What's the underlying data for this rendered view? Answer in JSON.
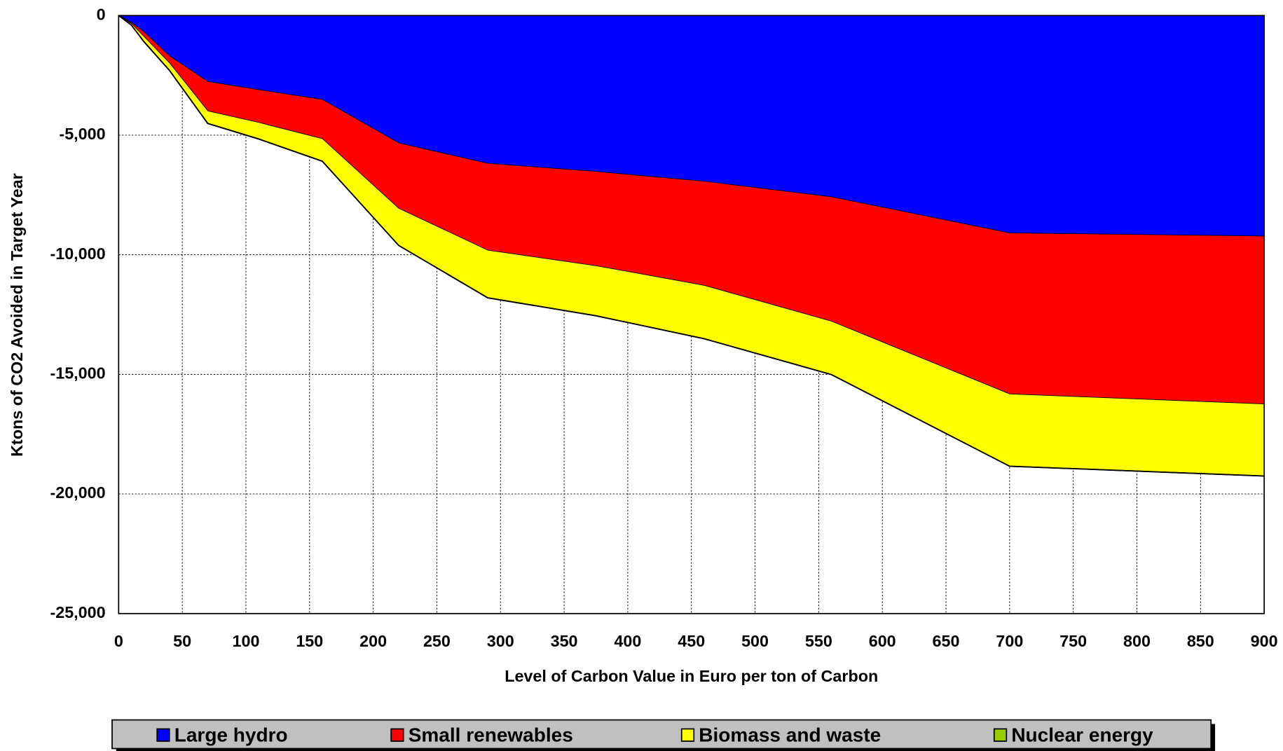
{
  "chart_data": {
    "type": "stacked_area",
    "x_label": "Level of Carbon Value in Euro per ton of Carbon",
    "y_label": "Ktons of CO2 Avoided in Target Year",
    "x": [
      0,
      10,
      20,
      40,
      70,
      110,
      160,
      220,
      290,
      375,
      460,
      560,
      700,
      900
    ],
    "series": [
      {
        "name": "Large hydro",
        "color": "#0000ff",
        "values": [
          0,
          -300,
          -700,
          -1700,
          -2770,
          -3110,
          -3520,
          -5340,
          -6190,
          -6530,
          -6940,
          -7590,
          -9100,
          -9230
        ]
      },
      {
        "name": "Small renewables",
        "color": "#ff0000",
        "values": [
          0,
          -50,
          -200,
          -300,
          -1230,
          -1370,
          -1640,
          -2730,
          -3630,
          -3940,
          -4350,
          -5200,
          -6730,
          -7020
        ]
      },
      {
        "name": "Biomass and waste",
        "color": "#ffff00",
        "values": [
          0,
          -50,
          -200,
          -300,
          -510,
          -680,
          -930,
          -1540,
          -1980,
          -2080,
          -2220,
          -2220,
          -3010,
          -3000
        ]
      },
      {
        "name": "Nuclear energy",
        "color": "#99cc00",
        "values": [
          0,
          0,
          0,
          0,
          0,
          0,
          0,
          0,
          0,
          0,
          0,
          0,
          0,
          0
        ]
      }
    ],
    "xlim": [
      0,
      900
    ],
    "xticks": [
      0,
      50,
      100,
      150,
      200,
      250,
      300,
      350,
      400,
      450,
      500,
      550,
      600,
      650,
      700,
      750,
      800,
      850,
      900
    ],
    "ylim": [
      -25000,
      0
    ],
    "yticks": [
      {
        "value": -25000,
        "label": "-25,000"
      },
      {
        "value": -20000,
        "label": "-20,000"
      },
      {
        "value": -15000,
        "label": "-15,000"
      },
      {
        "value": -10000,
        "label": "-10,000"
      },
      {
        "value": -5000,
        "label": "-5,000"
      },
      0
    ],
    "grid": true,
    "legend": "bottom"
  }
}
